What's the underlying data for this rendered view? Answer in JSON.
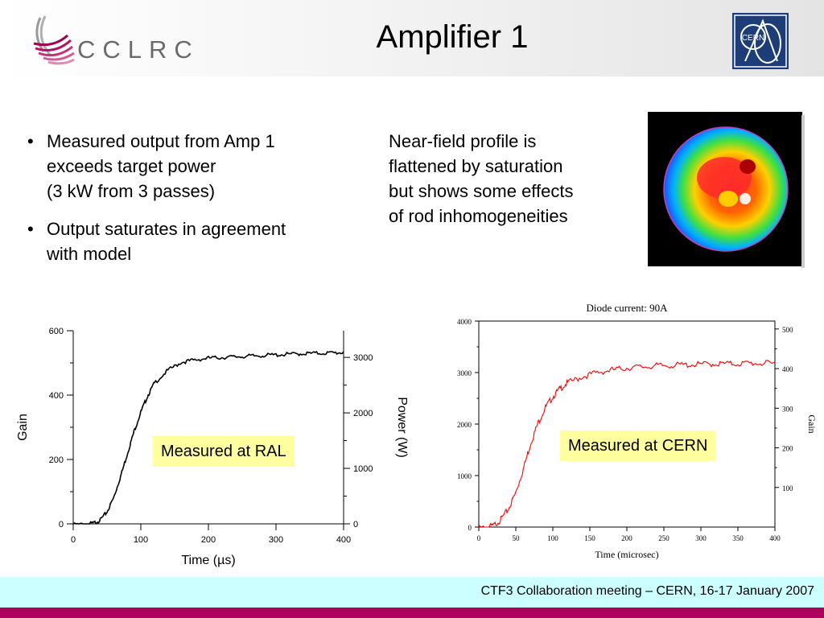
{
  "header": {
    "logo_text": "CCLRC",
    "title": "Amplifier 1",
    "cern_logo_text": "CERN"
  },
  "bullets": [
    "Measured output from Amp 1\nexceeds target power\n(3 kW from 3 passes)",
    "Output saturates in agreement\nwith model"
  ],
  "nearfield_text": "Near-field profile is\nflattened by saturation\nbut shows some effects\nof rod inhomogeneities",
  "notes": {
    "ral": "Measured at RAL",
    "cern": "Measured at CERN"
  },
  "footer": {
    "text": "CTF3 Collaboration meeting – CERN, 16-17 January 2007"
  },
  "colors": {
    "footer_bar": "#ccffff",
    "bottom_stripe": "#b0005e",
    "note_bg": "#ffffa0",
    "cern_trace": "#ff0000",
    "ral_trace": "#000000"
  },
  "chart_data": [
    {
      "type": "line",
      "title": "",
      "xlabel": "Time (µs)",
      "ylabel": "Gain",
      "y2label": "Power (W)",
      "xlim": [
        0,
        400
      ],
      "ylim": [
        0,
        600
      ],
      "y2lim": [
        0,
        3480
      ],
      "xticks": [
        "0",
        "100",
        "200",
        "300",
        "400"
      ],
      "yticks": [
        "0",
        "200",
        "400",
        "600"
      ],
      "y2ticks": [
        "0",
        "1000",
        "2000",
        "3000"
      ],
      "grid": false,
      "series": [
        {
          "x": [
            0,
            20,
            30,
            40,
            50,
            60,
            70,
            80,
            90,
            100,
            110,
            120,
            140,
            160,
            180,
            200,
            220,
            240,
            260,
            280,
            300,
            320,
            340,
            360,
            380,
            400
          ],
          "y": [
            0,
            2,
            5,
            15,
            40,
            85,
            150,
            220,
            290,
            350,
            400,
            440,
            480,
            505,
            512,
            518,
            520,
            522,
            524,
            526,
            528,
            530,
            532,
            533,
            534,
            535
          ]
        }
      ]
    },
    {
      "type": "line",
      "title": "Diode current: 90A",
      "xlabel": "Time (microsec)",
      "ylabel": "",
      "y2label": "Gain",
      "xlim": [
        0,
        400
      ],
      "ylim": [
        0,
        4000
      ],
      "y2lim": [
        0,
        520
      ],
      "xticks": [
        "0",
        "50",
        "100",
        "150",
        "200",
        "250",
        "300",
        "350",
        "400"
      ],
      "yticks": [
        "0",
        "1000",
        "2000",
        "3000",
        "4000"
      ],
      "y2ticks": [
        "100",
        "200",
        "300",
        "400",
        "500"
      ],
      "grid": false,
      "series": [
        {
          "x": [
            0,
            10,
            20,
            30,
            40,
            50,
            60,
            70,
            80,
            90,
            100,
            110,
            120,
            140,
            160,
            180,
            200,
            220,
            240,
            260,
            280,
            300,
            320,
            340,
            360,
            380,
            400
          ],
          "y": [
            0,
            20,
            60,
            180,
            380,
            700,
            1150,
            1650,
            2050,
            2350,
            2560,
            2720,
            2830,
            2950,
            3030,
            3080,
            3120,
            3140,
            3160,
            3170,
            3180,
            3190,
            3200,
            3200,
            3210,
            3210,
            3200
          ]
        }
      ]
    }
  ]
}
